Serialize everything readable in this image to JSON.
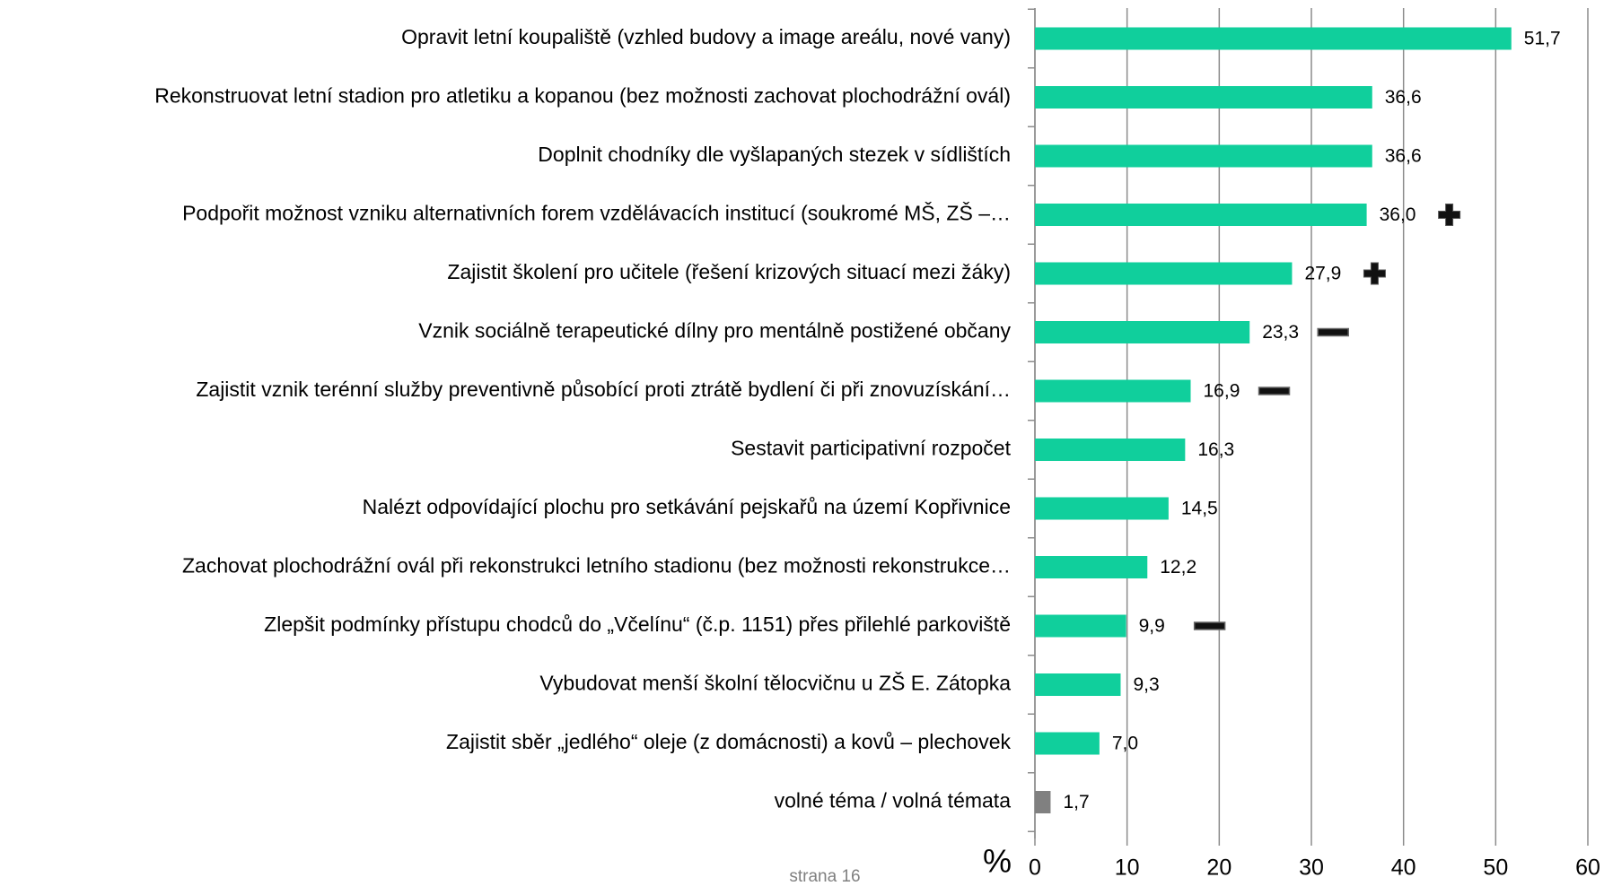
{
  "chart_data": {
    "type": "barh",
    "categories": [
      "Opravit letní koupaliště (vzhled budovy a image areálu, nové vany)",
      "Rekonstruovat letní stadion pro atletiku a kopanou (bez možnosti zachovat plochodrážní ovál)",
      "Doplnit chodníky dle vyšlapaných stezek v sídlištích",
      "Podpořit možnost vzniku alternativních forem vzdělávacích institucí (soukromé MŠ, ZŠ –…",
      "Zajistit školení pro učitele (řešení krizových situací mezi žáky)",
      "Vznik sociálně terapeutické dílny pro mentálně postižené občany",
      "Zajistit vznik terénní služby preventivně působící proti ztrátě bydlení či při znovuzískání…",
      "Sestavit participativní rozpočet",
      "Nalézt odpovídající plochu pro setkávání pejskařů na území Kopřivnice",
      "Zachovat plochodrážní ovál při rekonstrukci letního stadionu (bez možnosti rekonstrukce…",
      "Zlepšit podmínky přístupu chodců do „Včelínu“ (č.p. 1151) přes přilehlé parkoviště",
      "Vybudovat menší školní tělocvičnu u ZŠ E. Zátopka",
      "Zajistit sběr „jedlého“ oleje (z domácnosti) a kovů – plechovek",
      "volné téma / volná témata"
    ],
    "values": [
      51.7,
      36.6,
      36.6,
      36.0,
      27.9,
      23.3,
      16.9,
      16.3,
      14.5,
      12.2,
      9.9,
      9.3,
      7.0,
      1.7
    ],
    "value_labels": [
      "51,7",
      "36,6",
      "36,6",
      "36,0",
      "27,9",
      "23,3",
      "16,9",
      "16,3",
      "14,5",
      "12,2",
      "9,9",
      "9,3",
      "7,0",
      "1,7"
    ],
    "colors": [
      "#10cf9c",
      "#10cf9c",
      "#10cf9c",
      "#10cf9c",
      "#10cf9c",
      "#10cf9c",
      "#10cf9c",
      "#10cf9c",
      "#10cf9c",
      "#10cf9c",
      "#10cf9c",
      "#10cf9c",
      "#10cf9c",
      "#808080"
    ],
    "markers": [
      null,
      null,
      null,
      "plus",
      "plus",
      "minus",
      "minus",
      null,
      null,
      null,
      "minus",
      null,
      null,
      null
    ],
    "xlim": [
      0,
      60
    ],
    "xticks": [
      0,
      10,
      20,
      30,
      40,
      50,
      60
    ],
    "grid": true,
    "x_label": "%",
    "footer": "strana 16"
  }
}
